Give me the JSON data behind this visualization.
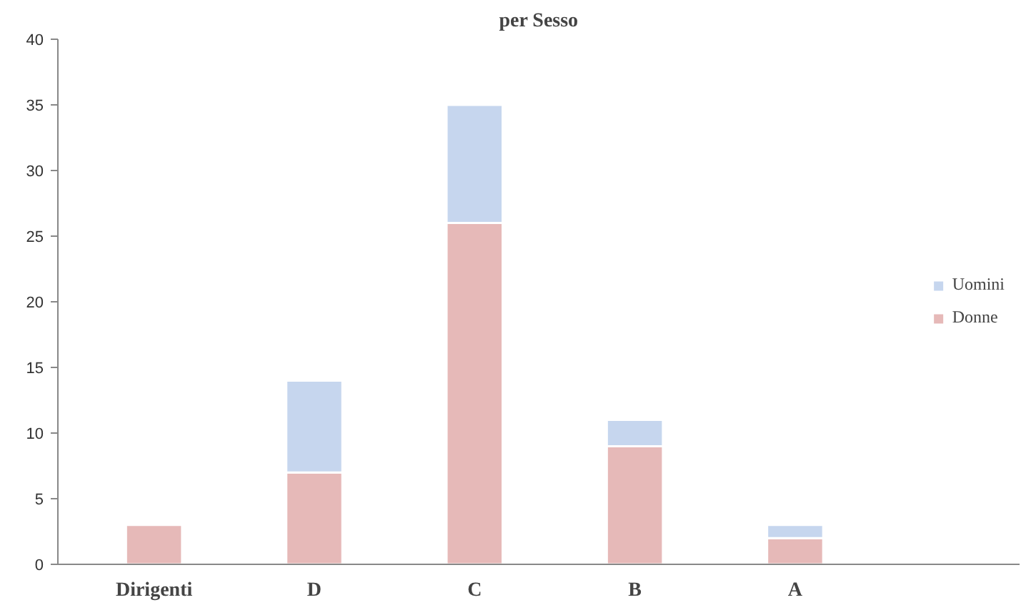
{
  "chart_data": {
    "type": "bar",
    "title": "per Sesso",
    "categories": [
      "Dirigenti",
      "D",
      "C",
      "B",
      "A"
    ],
    "series": [
      {
        "name": "Donne",
        "color": "#e6b9b8",
        "values": [
          3,
          7,
          26,
          9,
          2
        ]
      },
      {
        "name": "Uomini",
        "color": "#c6d6ee",
        "values": [
          null,
          7,
          9,
          2,
          1
        ]
      }
    ],
    "stacked": true,
    "ylim": [
      0,
      40
    ],
    "yticks": [
      0,
      5,
      10,
      15,
      20,
      25,
      30,
      35,
      40
    ],
    "grid": false,
    "legend": "right"
  }
}
